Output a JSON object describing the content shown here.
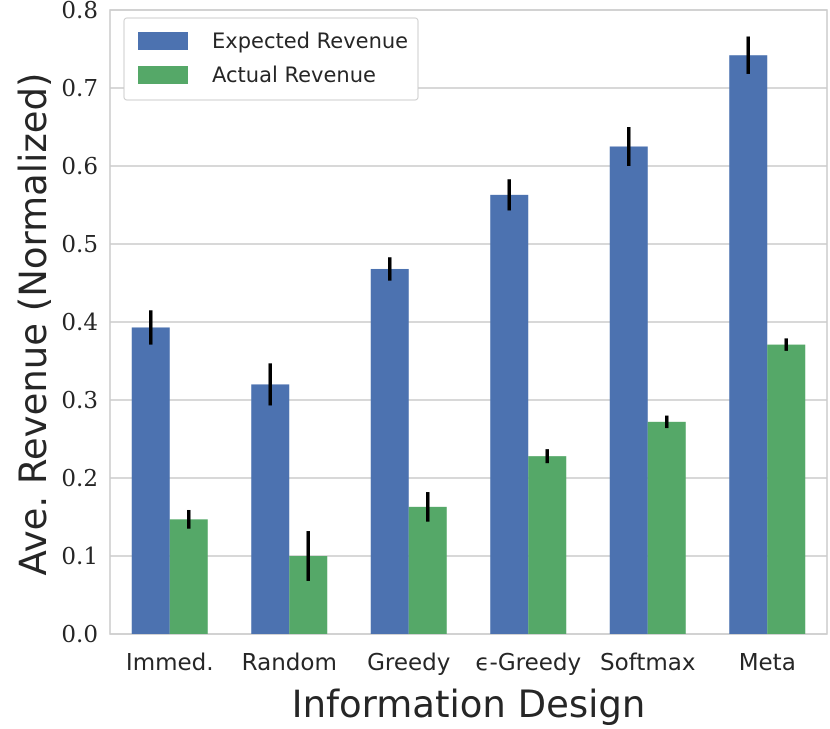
{
  "chart_data": {
    "type": "bar",
    "title": "",
    "xlabel": "Information Design",
    "ylabel": "Ave. Revenue (Normalized)",
    "ylim": [
      0,
      0.8
    ],
    "yticks": [
      "0.0",
      "0.1",
      "0.2",
      "0.3",
      "0.4",
      "0.5",
      "0.6",
      "0.7",
      "0.8"
    ],
    "grid": true,
    "legend_position": "top-left",
    "categories": [
      "Immed.",
      "Random",
      "Greedy",
      "ϵ-Greedy",
      "Softmax",
      "Meta"
    ],
    "series": [
      {
        "name": "Expected Revenue",
        "color": "#4c72b0",
        "values": [
          0.393,
          0.32,
          0.468,
          0.563,
          0.625,
          0.742
        ],
        "errors": [
          0.022,
          0.027,
          0.015,
          0.02,
          0.025,
          0.024
        ]
      },
      {
        "name": "Actual Revenue",
        "color": "#55a868",
        "values": [
          0.147,
          0.1,
          0.163,
          0.228,
          0.272,
          0.371
        ],
        "errors": [
          0.012,
          0.032,
          0.019,
          0.009,
          0.008,
          0.008
        ]
      }
    ],
    "error_bar_color": "#000000",
    "grid_color": "#cccccc"
  }
}
